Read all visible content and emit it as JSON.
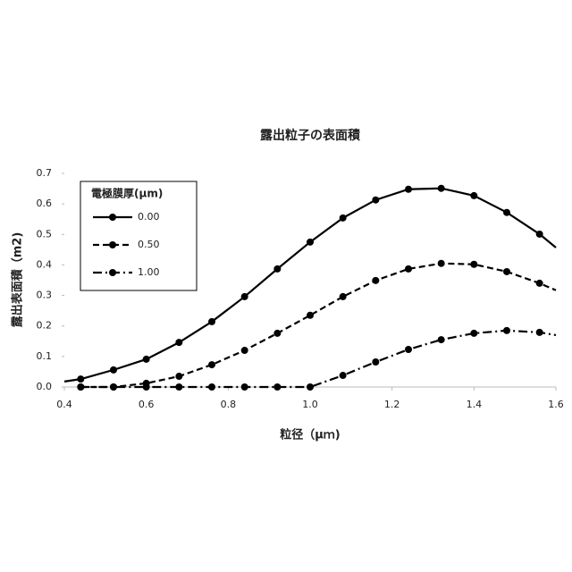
{
  "chart_data": {
    "type": "line",
    "title": "露出粒子の表面積",
    "x_label": "粒径（μｍ)",
    "y_label": "露出表面積（m2)",
    "legend_title": "電極膜厚(μm)",
    "legend": "top-left",
    "x": [
      0.4,
      0.44,
      0.52,
      0.6,
      0.68,
      0.76,
      0.84,
      0.92,
      1.0,
      1.08,
      1.16,
      1.24,
      1.32,
      1.4,
      1.48,
      1.56,
      1.6
    ],
    "series": [
      {
        "name": "0.00",
        "color": "#000000",
        "dash": "solid",
        "values": [
          0.018,
          0.026,
          0.056,
          0.091,
          0.146,
          0.214,
          0.296,
          0.387,
          0.475,
          0.554,
          0.613,
          0.648,
          0.651,
          0.627,
          0.572,
          0.501,
          0.457
        ]
      },
      {
        "name": "0.50",
        "color": "#000000",
        "dash": "dashed",
        "values": [
          null,
          0,
          0,
          0.012,
          0.035,
          0.073,
          0.12,
          0.176,
          0.235,
          0.296,
          0.349,
          0.387,
          0.405,
          0.402,
          0.378,
          0.34,
          0.317
        ]
      },
      {
        "name": "1.00",
        "color": "#000000",
        "dash": "dashdot",
        "values": [
          null,
          0,
          0,
          0,
          0,
          0,
          0,
          0,
          0,
          0.038,
          0.082,
          0.123,
          0.155,
          0.176,
          0.185,
          0.179,
          0.17
        ]
      }
    ],
    "xlim": [
      0.4,
      1.6
    ],
    "xticks": [
      0.4,
      0.6,
      0.8,
      {
        "value": 1,
        "label": "1.0"
      },
      1.2,
      1.4,
      1.6
    ],
    "ylim": [
      0,
      0.7
    ],
    "yticks": [
      {
        "value": 0,
        "label": "0.0"
      },
      0.1,
      0.2,
      0.3,
      0.4,
      0.5,
      0.6,
      0.7
    ]
  }
}
